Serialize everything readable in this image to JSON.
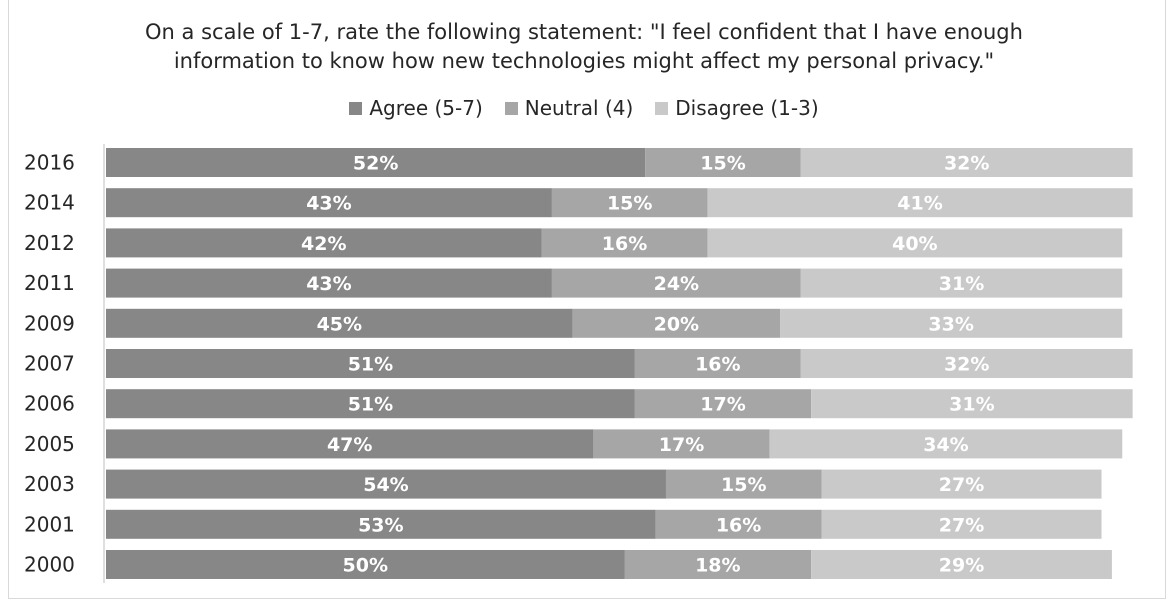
{
  "chart_data": {
    "type": "bar",
    "orientation": "horizontal",
    "stacked": true,
    "title_lines": [
      "On a scale of 1-7, rate the following statement: \"I feel confident that I have enough",
      "information to know how new technologies might affect my personal privacy.\""
    ],
    "categories": [
      "2016",
      "2014",
      "2012",
      "2011",
      "2009",
      "2007",
      "2006",
      "2005",
      "2003",
      "2001",
      "2000"
    ],
    "series": [
      {
        "name": "Agree (5-7)",
        "color": "#878787",
        "values": [
          52,
          43,
          42,
          43,
          45,
          51,
          51,
          47,
          54,
          53,
          50
        ]
      },
      {
        "name": "Neutral (4)",
        "color": "#a6a6a6",
        "values": [
          15,
          15,
          16,
          24,
          20,
          16,
          17,
          17,
          15,
          16,
          18
        ]
      },
      {
        "name": "Disagree (1-3)",
        "color": "#c9c9c9",
        "values": [
          32,
          41,
          40,
          31,
          33,
          32,
          31,
          34,
          27,
          27,
          29
        ]
      }
    ],
    "value_suffix": "%",
    "legend_position": "top",
    "grid": false
  }
}
